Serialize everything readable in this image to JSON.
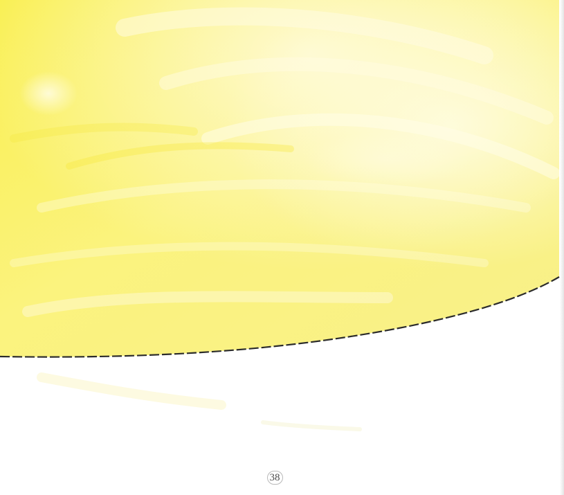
{
  "page": {
    "page_number": "38"
  },
  "illustration": {
    "subject": "yellow-watercolor-wash",
    "fill_color": "#f7ee5a",
    "highlight_color": "#fffbd6",
    "edge_color": "#2b2b2b"
  }
}
